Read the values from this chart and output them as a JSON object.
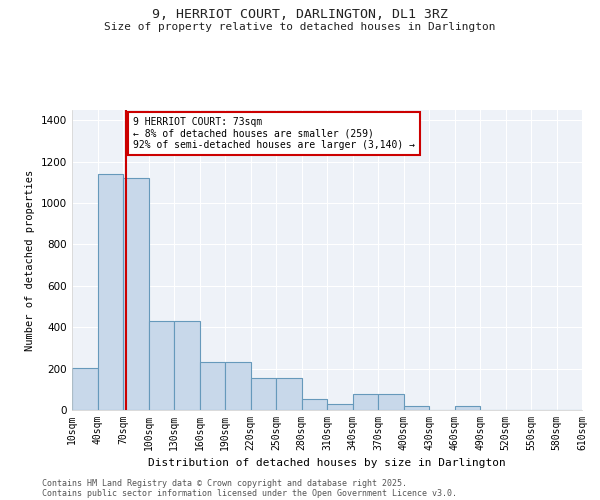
{
  "title1": "9, HERRIOT COURT, DARLINGTON, DL1 3RZ",
  "title2": "Size of property relative to detached houses in Darlington",
  "xlabel": "Distribution of detached houses by size in Darlington",
  "ylabel": "Number of detached properties",
  "bins": [
    "10sqm",
    "40sqm",
    "70sqm",
    "100sqm",
    "130sqm",
    "160sqm",
    "190sqm",
    "220sqm",
    "250sqm",
    "280sqm",
    "310sqm",
    "340sqm",
    "370sqm",
    "400sqm",
    "430sqm",
    "460sqm",
    "490sqm",
    "520sqm",
    "550sqm",
    "580sqm",
    "610sqm"
  ],
  "bin_edges": [
    10,
    40,
    70,
    100,
    130,
    160,
    190,
    220,
    250,
    280,
    310,
    340,
    370,
    400,
    430,
    460,
    490,
    520,
    550,
    580,
    610
  ],
  "bar_heights": [
    205,
    1140,
    1120,
    430,
    430,
    230,
    230,
    155,
    155,
    55,
    30,
    75,
    75,
    20,
    0,
    20,
    0,
    0,
    0,
    0
  ],
  "bar_color": "#c8d8ea",
  "bar_edge_color": "#6699bb",
  "vline_x": 73,
  "vline_color": "#cc0000",
  "annotation_text": "9 HERRIOT COURT: 73sqm\n← 8% of detached houses are smaller (259)\n92% of semi-detached houses are larger (3,140) →",
  "annotation_box_color": "#ffffff",
  "annotation_box_edge": "#cc0000",
  "ylim": [
    0,
    1450
  ],
  "yticks": [
    0,
    200,
    400,
    600,
    800,
    1000,
    1200,
    1400
  ],
  "bg_color": "#ffffff",
  "plot_bg_color": "#eef2f8",
  "footer1": "Contains HM Land Registry data © Crown copyright and database right 2025.",
  "footer2": "Contains public sector information licensed under the Open Government Licence v3.0."
}
